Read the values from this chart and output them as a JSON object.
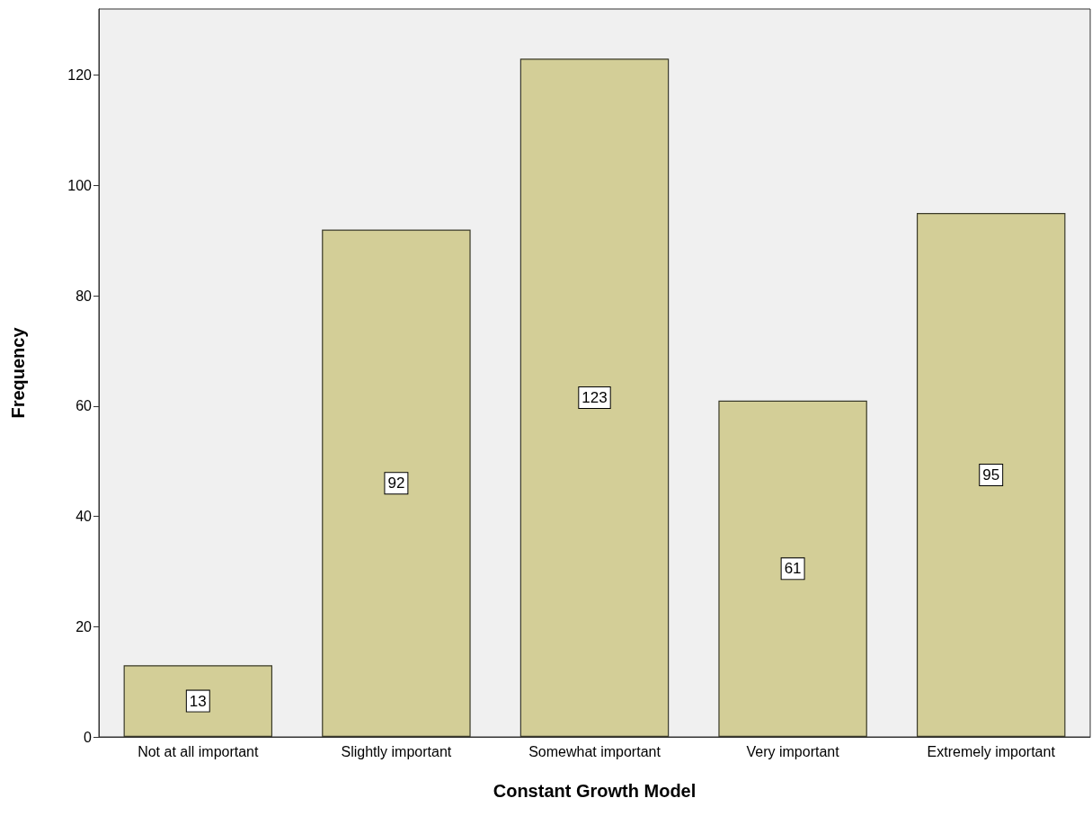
{
  "chart_data": {
    "type": "bar",
    "xlabel": "Constant Growth Model",
    "ylabel": "Frequency",
    "categories": [
      "Not at all important",
      "Slightly important",
      "Somewhat important",
      "Very important",
      "Extremely important"
    ],
    "values": [
      13,
      92,
      123,
      61,
      95
    ],
    "color": "#d3ce97",
    "ylim": [
      0,
      132
    ],
    "yticks": [
      0,
      20,
      40,
      60,
      80,
      100,
      120
    ],
    "grid": false,
    "data_labels": true
  }
}
